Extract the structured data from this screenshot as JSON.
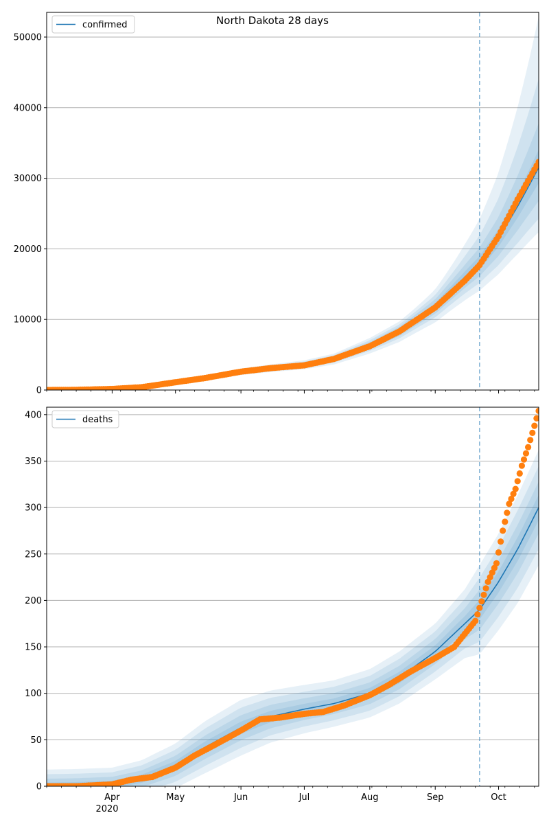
{
  "figure": {
    "title": "North Dakota 28 days"
  },
  "colors": {
    "line": "#1f77b4",
    "points": "#ff7f0e",
    "band": "#1f77b4",
    "grid": "#b0b0b0"
  },
  "x_axis": {
    "start": "2020-03-01",
    "end": "2020-10-20",
    "year_label": "2020"
  },
  "chart_data": [
    {
      "type": "line",
      "legend": "confirmed",
      "legend_position": "top-left",
      "ylim": [
        0,
        53500
      ],
      "yticks": [
        0,
        10000,
        20000,
        30000,
        40000,
        50000
      ],
      "xticks": [
        {
          "label": "Apr",
          "date": "2020-04-01"
        },
        {
          "label": "May",
          "date": "2020-05-01"
        },
        {
          "label": "Jun",
          "date": "2020-06-01"
        },
        {
          "label": "Jul",
          "date": "2020-07-01"
        },
        {
          "label": "Aug",
          "date": "2020-08-01"
        },
        {
          "label": "Sep",
          "date": "2020-09-01"
        },
        {
          "label": "Oct",
          "date": "2020-10-01"
        }
      ],
      "forecast_start": "2020-09-22",
      "grid": true,
      "fit": {
        "x": [
          "2020-03-01",
          "2020-03-15",
          "2020-04-01",
          "2020-04-15",
          "2020-05-01",
          "2020-05-15",
          "2020-06-01",
          "2020-06-15",
          "2020-07-01",
          "2020-07-15",
          "2020-08-01",
          "2020-08-15",
          "2020-09-01",
          "2020-09-15",
          "2020-09-22",
          "2020-10-01",
          "2020-10-10",
          "2020-10-20"
        ],
        "y": [
          0,
          30,
          200,
          450,
          1100,
          1700,
          2600,
          3100,
          3600,
          4400,
          6300,
          8300,
          11800,
          16000,
          18000,
          21500,
          26000,
          31500
        ],
        "bands": [
          {
            "lower": [
              0,
              0,
              0,
              0,
              0,
              0,
              0,
              0,
              0,
              0,
              0,
              0,
              0,
              0,
              0,
              0,
              0,
              0
            ],
            "upper": [
              0,
              0,
              0,
              0,
              0,
              0,
              0,
              0,
              0,
              0,
              0,
              0,
              0,
              0,
              0,
              0,
              0,
              0
            ]
          }
        ],
        "band_scales": [
          {
            "lo": 0.96,
            "hi": 1.04,
            "late_lo": 0.93,
            "late_hi": 1.08
          },
          {
            "lo": 0.92,
            "hi": 1.08,
            "late_lo": 0.85,
            "late_hi": 1.2
          },
          {
            "lo": 0.88,
            "hi": 1.12,
            "late_lo": 0.77,
            "late_hi": 1.4
          },
          {
            "lo": 0.82,
            "hi": 1.17,
            "late_lo": 0.71,
            "late_hi": 1.68
          }
        ]
      },
      "observed": {
        "x": [
          "2020-03-01",
          "2020-03-15",
          "2020-04-01",
          "2020-04-15",
          "2020-05-01",
          "2020-05-15",
          "2020-06-01",
          "2020-06-15",
          "2020-07-01",
          "2020-07-15",
          "2020-08-01",
          "2020-08-15",
          "2020-09-01",
          "2020-09-15",
          "2020-09-22",
          "2020-10-01",
          "2020-10-10",
          "2020-10-20"
        ],
        "y": [
          0,
          30,
          150,
          400,
          1100,
          1700,
          2600,
          3100,
          3500,
          4400,
          6200,
          8300,
          11700,
          15500,
          17700,
          21800,
          27000,
          32300
        ]
      }
    },
    {
      "type": "line",
      "legend": "deaths",
      "legend_position": "top-left",
      "ylim": [
        0,
        408
      ],
      "yticks": [
        0,
        50,
        100,
        150,
        200,
        250,
        300,
        350,
        400
      ],
      "xticks": [
        {
          "label": "Apr",
          "date": "2020-04-01"
        },
        {
          "label": "May",
          "date": "2020-05-01"
        },
        {
          "label": "Jun",
          "date": "2020-06-01"
        },
        {
          "label": "Jul",
          "date": "2020-07-01"
        },
        {
          "label": "Aug",
          "date": "2020-08-01"
        },
        {
          "label": "Sep",
          "date": "2020-09-01"
        },
        {
          "label": "Oct",
          "date": "2020-10-01"
        }
      ],
      "forecast_start": "2020-09-22",
      "grid": true,
      "fit": {
        "x": [
          "2020-03-01",
          "2020-03-15",
          "2020-04-01",
          "2020-04-15",
          "2020-05-01",
          "2020-05-15",
          "2020-06-01",
          "2020-06-15",
          "2020-07-01",
          "2020-07-15",
          "2020-08-01",
          "2020-08-15",
          "2020-09-01",
          "2020-09-15",
          "2020-09-22",
          "2020-10-01",
          "2020-10-10",
          "2020-10-20"
        ],
        "y": [
          0,
          0.5,
          2,
          8,
          22,
          42,
          63,
          75,
          83,
          89,
          100,
          117,
          145,
          175,
          190,
          220,
          255,
          300
        ],
        "band_half": [
          18,
          18,
          18,
          20,
          24,
          28,
          30,
          28,
          26,
          25,
          26,
          28,
          30,
          37,
          48,
          52,
          58,
          62
        ]
      },
      "observed": {
        "x": [
          "2020-03-01",
          "2020-03-15",
          "2020-04-01",
          "2020-04-10",
          "2020-04-20",
          "2020-05-01",
          "2020-05-10",
          "2020-05-20",
          "2020-06-01",
          "2020-06-10",
          "2020-06-20",
          "2020-07-01",
          "2020-07-10",
          "2020-07-20",
          "2020-08-01",
          "2020-08-10",
          "2020-08-20",
          "2020-09-01",
          "2020-09-10",
          "2020-09-20",
          "2020-09-22",
          "2020-09-26",
          "2020-09-30",
          "2020-10-03",
          "2020-10-06",
          "2020-10-09",
          "2020-10-12",
          "2020-10-15",
          "2020-10-18",
          "2020-10-20"
        ],
        "y": [
          0,
          0,
          2,
          7,
          10,
          20,
          33,
          45,
          60,
          72,
          74,
          78,
          80,
          87,
          98,
          109,
          123,
          138,
          150,
          178,
          192,
          220,
          240,
          275,
          304,
          320,
          345,
          365,
          388,
          404
        ]
      }
    }
  ]
}
